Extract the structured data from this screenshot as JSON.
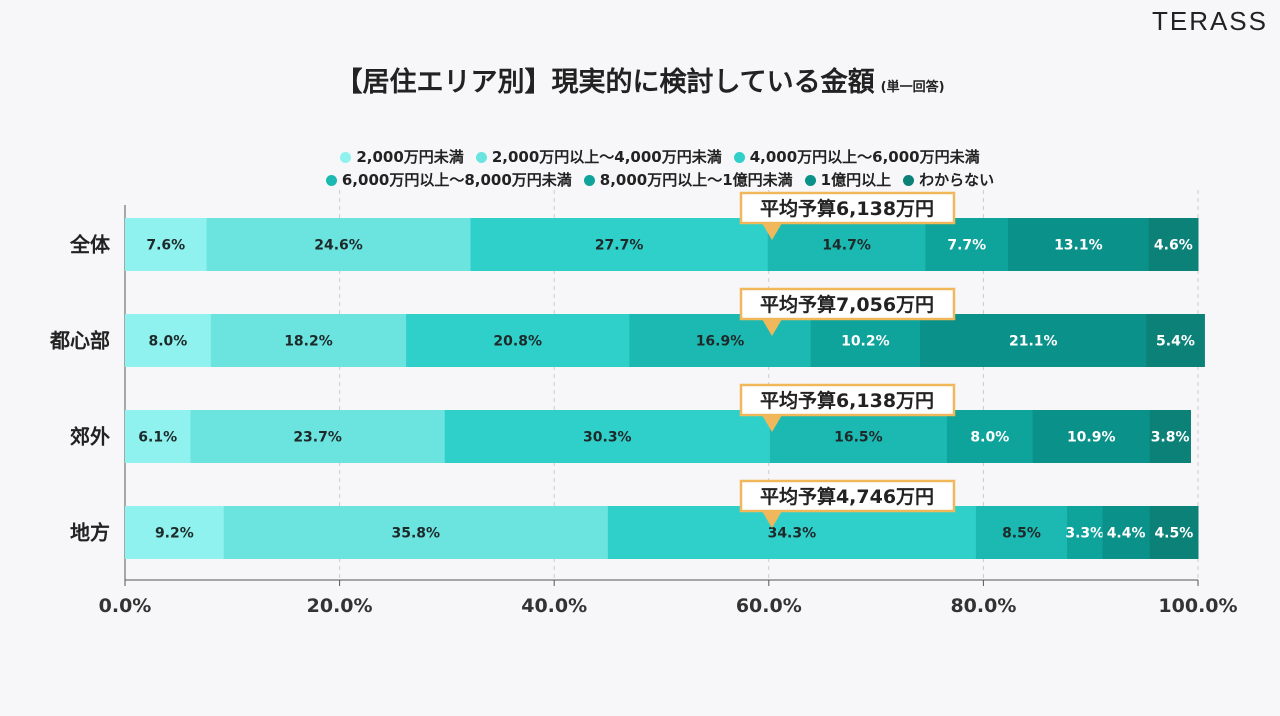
{
  "logo": "TERASS",
  "title": "【居住エリア別】現実的に検討している金額",
  "subtitle": "(単一回答)",
  "chart_data": {
    "type": "bar",
    "orientation": "horizontal",
    "stacked": true,
    "categories": [
      "全体",
      "都心部",
      "郊外",
      "地方"
    ],
    "series": [
      {
        "name": "2,000万円未満",
        "color": "#8ff2ee",
        "values": [
          7.6,
          8.0,
          6.1,
          9.2
        ]
      },
      {
        "name": "2,000万円以上～4,000万円未満",
        "color": "#6be4e0",
        "values": [
          24.6,
          18.2,
          23.7,
          35.8
        ]
      },
      {
        "name": "4,000万円以上～6,000万円未満",
        "color": "#30d0ca",
        "values": [
          27.7,
          20.8,
          30.3,
          34.3
        ]
      },
      {
        "name": "6,000万円以上～8,000万円未満",
        "color": "#1bb9b1",
        "values": [
          14.7,
          16.9,
          16.5,
          8.5
        ]
      },
      {
        "name": "8,000万円以上～1億円未満",
        "color": "#0ea39b",
        "values": [
          7.7,
          10.2,
          8.0,
          3.3
        ]
      },
      {
        "name": "1億円以上",
        "color": "#0a9189",
        "values": [
          13.1,
          21.1,
          10.9,
          4.4
        ]
      },
      {
        "name": "わからない",
        "color": "#0c8178",
        "values": [
          4.6,
          5.4,
          3.8,
          4.5
        ]
      }
    ],
    "annotations": [
      "平均予算6,138万円",
      "平均予算7,056万円",
      "平均予算6,138万円",
      "平均予算4,746万円"
    ],
    "xlim": [
      0,
      100
    ],
    "xticks": [
      "0.0%",
      "20.0%",
      "40.0%",
      "60.0%",
      "80.0%",
      "100.0%"
    ],
    "grid": true,
    "legend": "top"
  }
}
